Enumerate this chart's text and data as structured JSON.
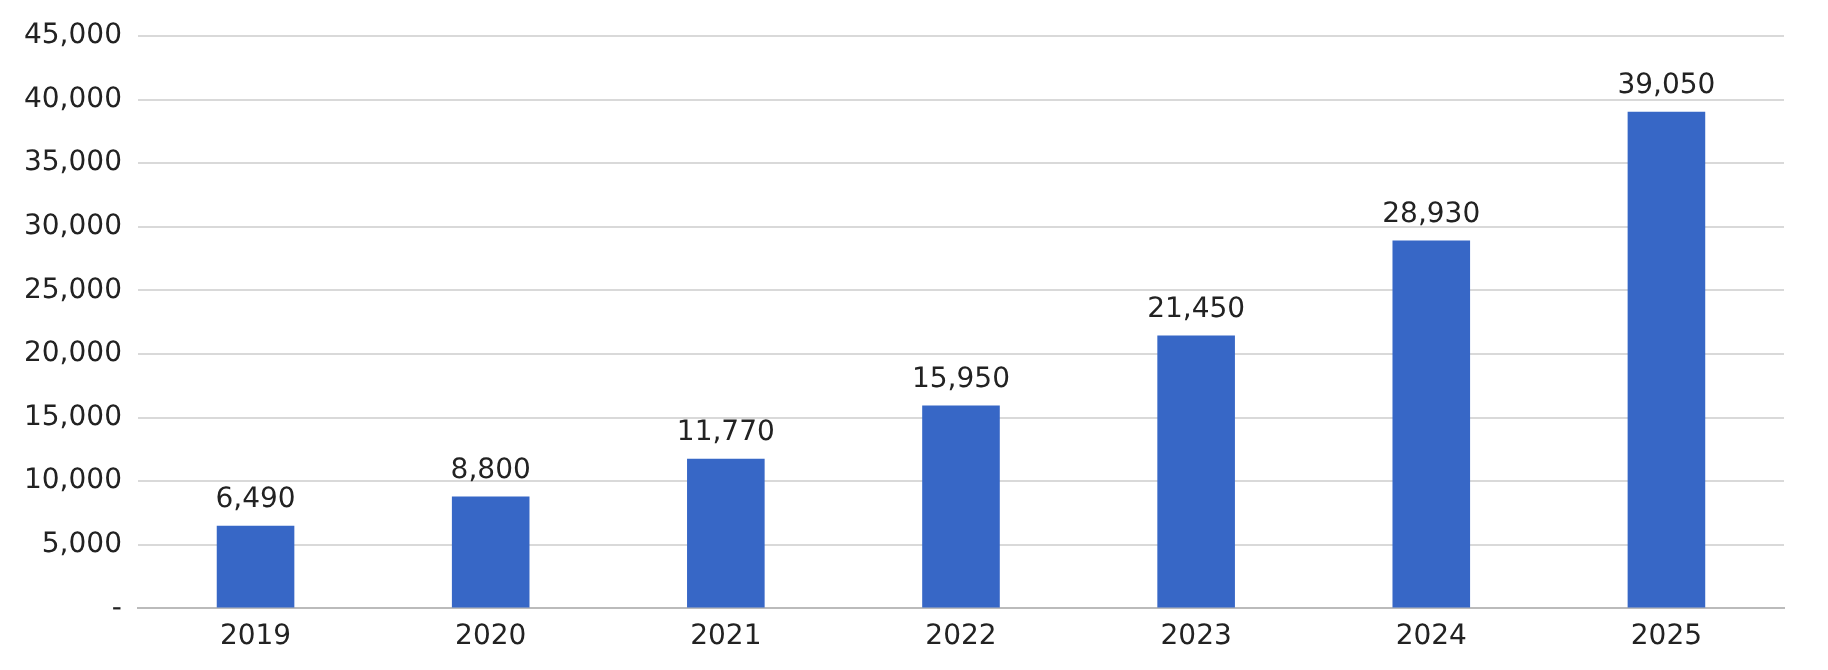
{
  "chart_data": {
    "type": "bar",
    "categories": [
      "2019",
      "2020",
      "2021",
      "2022",
      "2023",
      "2024",
      "2025"
    ],
    "values": [
      6490,
      8800,
      11770,
      15950,
      21450,
      28930,
      39050
    ],
    "value_labels": [
      "6,490",
      "8,800",
      "11,770",
      "15,950",
      "21,450",
      "28,930",
      "39,050"
    ],
    "color": "#3767c6",
    "ylim": [
      0,
      45000
    ],
    "yticks": [
      {
        "value": 0,
        "label": "-"
      },
      {
        "value": 5000,
        "label": "5,000"
      },
      {
        "value": 10000,
        "label": "10,000"
      },
      {
        "value": 15000,
        "label": "15,000"
      },
      {
        "value": 20000,
        "label": "20,000"
      },
      {
        "value": 25000,
        "label": "25,000"
      },
      {
        "value": 30000,
        "label": "30,000"
      },
      {
        "value": 35000,
        "label": "35,000"
      },
      {
        "value": 40000,
        "label": "40,000"
      },
      {
        "value": 45000,
        "label": "45,000"
      }
    ],
    "grid": "y",
    "legend": false
  }
}
